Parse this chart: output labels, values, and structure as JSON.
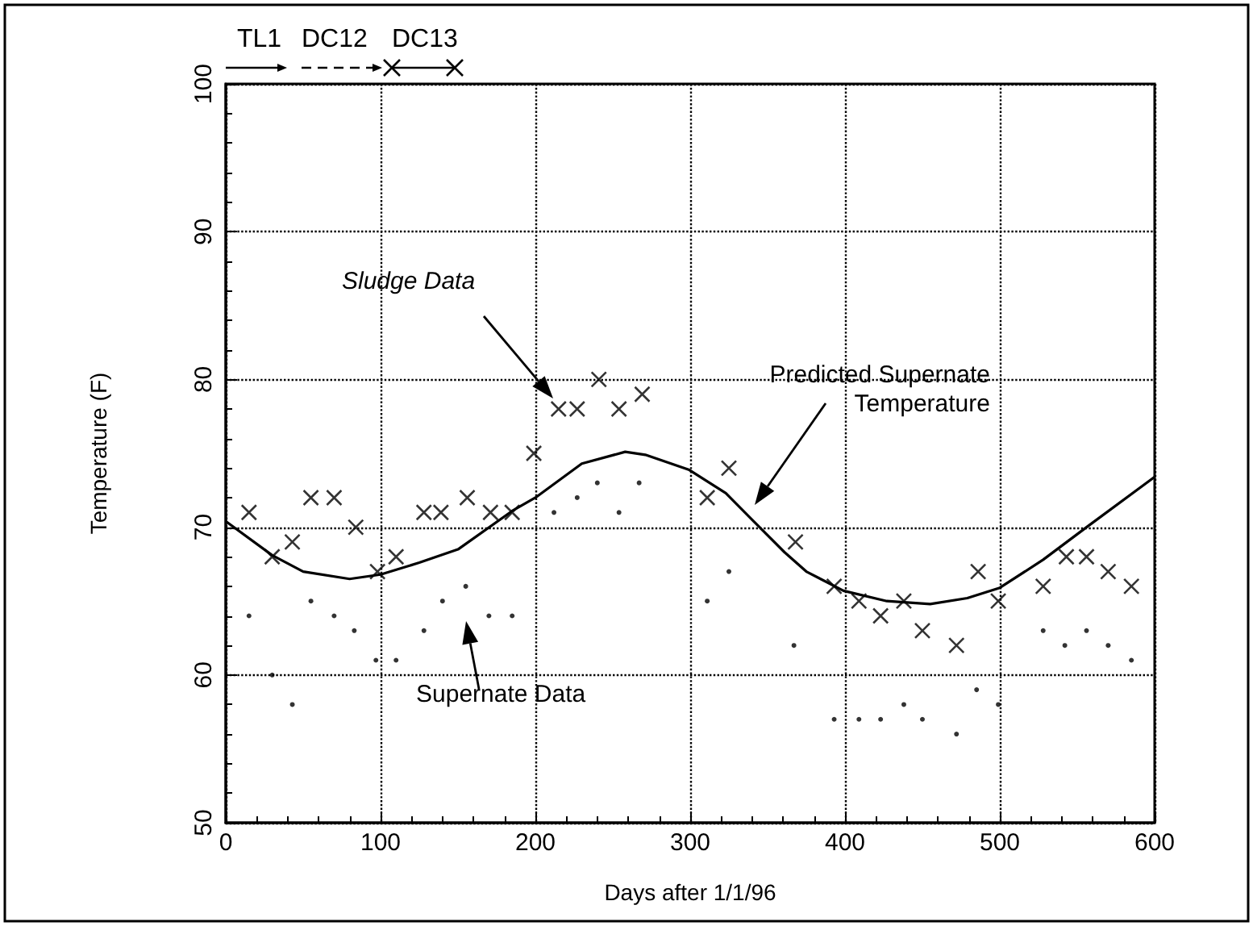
{
  "chart_data": {
    "type": "scatter",
    "xlabel": "Days after 1/1/96",
    "ylabel": "Temperature (F)",
    "xlim": [
      0,
      600
    ],
    "xticks": [
      0,
      100,
      200,
      300,
      400,
      500,
      600
    ],
    "ylim": [
      50,
      100
    ],
    "yticks": [
      50,
      60,
      70,
      80,
      90,
      100
    ],
    "grid": true,
    "series": [
      {
        "marker": "cross",
        "color": "#000000",
        "x": [
          15,
          30,
          43,
          55,
          70,
          84,
          98,
          110,
          128,
          139,
          156,
          171,
          185,
          199,
          215,
          227,
          241,
          254,
          269,
          311,
          325,
          368,
          393,
          409,
          423,
          438,
          450,
          472,
          486,
          499,
          528,
          543,
          556,
          570,
          585
        ],
        "values": [
          71,
          68,
          69,
          72,
          72,
          70,
          67,
          68,
          71,
          71,
          72,
          71,
          71,
          75,
          78,
          78,
          80,
          78,
          79,
          72,
          74,
          69,
          66,
          65,
          64,
          65,
          63,
          62,
          67,
          65,
          66,
          68,
          68,
          67,
          66
        ]
      },
      {
        "marker": "circle",
        "color": "#000000",
        "x": [
          15,
          30,
          43,
          55,
          70,
          83,
          97,
          110,
          128,
          140,
          155,
          170,
          185,
          212,
          227,
          240,
          254,
          267,
          311,
          325,
          367,
          393,
          409,
          423,
          438,
          450,
          472,
          485,
          499,
          528,
          542,
          556,
          570,
          585
        ],
        "values": [
          64,
          60,
          58,
          65,
          64,
          63,
          61,
          61,
          63,
          65,
          66,
          64,
          64,
          71,
          72,
          73,
          71,
          73,
          65,
          67,
          62,
          57,
          57,
          57,
          58,
          57,
          56,
          59,
          58,
          63,
          62,
          63,
          62,
          61
        ]
      },
      {
        "type": "line",
        "marker": "none",
        "line_style": "solid",
        "color": "#000000",
        "x": [
          0,
          30,
          50,
          80,
          100,
          125,
          150,
          185,
          200,
          230,
          258,
          271,
          299,
          323,
          340,
          361,
          375,
          399,
          427,
          455,
          479,
          500,
          528,
          556,
          600
        ],
        "values": [
          70.4,
          68.1,
          67.0,
          66.5,
          66.8,
          67.6,
          68.5,
          71.1,
          72.0,
          74.3,
          75.1,
          74.9,
          73.9,
          72.3,
          70.5,
          68.3,
          67.0,
          65.7,
          65.0,
          64.8,
          65.2,
          65.9,
          67.8,
          70.0,
          73.4
        ]
      }
    ],
    "annotations": [
      "TL1",
      "DC12",
      "DC13",
      "Sludge Data",
      "Predicted Supernate Temperature",
      "Supernate Data"
    ]
  }
}
